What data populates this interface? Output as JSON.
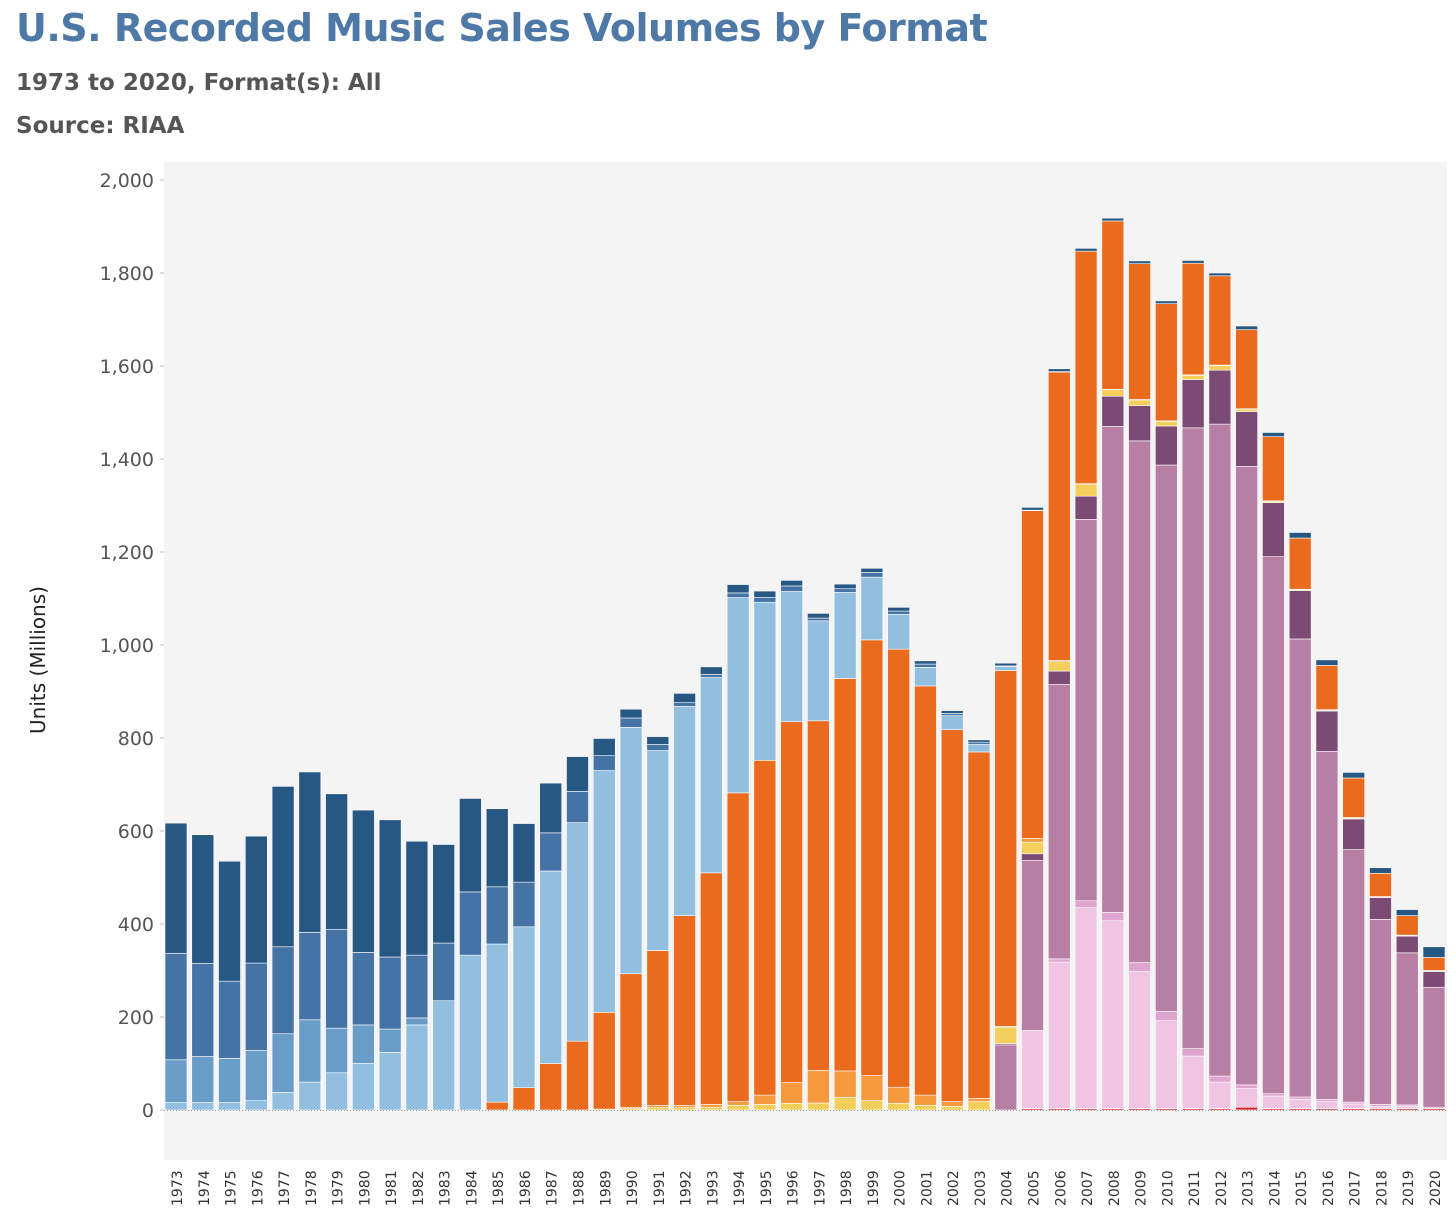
{
  "header": {
    "title": "U.S. Recorded Music Sales Volumes by Format",
    "subtitle": "1973 to 2020, Format(s): All",
    "source": "Source: RIAA"
  },
  "chart_data": {
    "type": "bar",
    "stacked": true,
    "ylabel": "Units (Millions)",
    "ylim": [
      -110,
      2020
    ],
    "yticks": [
      0,
      200,
      400,
      600,
      800,
      1000,
      1200,
      1400,
      1600,
      1800,
      2000
    ],
    "ytick_labels": [
      "0",
      "200",
      "400",
      "600",
      "800",
      "1,000",
      "1,200",
      "1,400",
      "1,600",
      "1,800",
      "2,000"
    ],
    "categories": [
      "1973",
      "1974",
      "1975",
      "1976",
      "1977",
      "1978",
      "1979",
      "1980",
      "1981",
      "1982",
      "1983",
      "1984",
      "1985",
      "1986",
      "1987",
      "1988",
      "1989",
      "1990",
      "1991",
      "1992",
      "1993",
      "1994",
      "1995",
      "1996",
      "1997",
      "1998",
      "1999",
      "2000",
      "2001",
      "2002",
      "2003",
      "2004",
      "2005",
      "2006",
      "2007",
      "2008",
      "2009",
      "2010",
      "2011",
      "2012",
      "2013",
      "2014",
      "2015",
      "2016",
      "2017",
      "2018",
      "2019",
      "2020"
    ],
    "grid": false,
    "legend": "none",
    "series": [
      {
        "color": "#d62728",
        "values": [
          0,
          0,
          0,
          0,
          0,
          0,
          0,
          0,
          0,
          0,
          0,
          0,
          0,
          0,
          0,
          0,
          0,
          0,
          0,
          0,
          0,
          0,
          0,
          0,
          0,
          0,
          0,
          0,
          0,
          0,
          0,
          0,
          3,
          3,
          3,
          3,
          3,
          3,
          3,
          3,
          6,
          3,
          3,
          3,
          3,
          3,
          3,
          3
        ]
      },
      {
        "color": "#efc5e2",
        "values": [
          0,
          0,
          0,
          0,
          0,
          0,
          0,
          0,
          0,
          0,
          0,
          0,
          0,
          0,
          0,
          0,
          0,
          0,
          0,
          0,
          0,
          0,
          0,
          0,
          0,
          0,
          0,
          0,
          0,
          0,
          0,
          0,
          168,
          315,
          432,
          404,
          295,
          189,
          113,
          57,
          40,
          27,
          20,
          15,
          10,
          5,
          5,
          0
        ]
      },
      {
        "color": "#dfa4d0",
        "values": [
          0,
          0,
          0,
          0,
          0,
          0,
          0,
          0,
          0,
          0,
          0,
          0,
          0,
          0,
          0,
          0,
          0,
          0,
          0,
          0,
          0,
          0,
          0,
          0,
          0,
          0,
          0,
          0,
          0,
          0,
          0,
          0,
          0,
          7,
          15,
          18,
          19,
          20,
          16,
          13,
          8,
          5,
          5,
          5,
          4,
          4,
          3,
          3
        ]
      },
      {
        "color": "#b87fa4",
        "values": [
          0,
          0,
          0,
          0,
          0,
          0,
          0,
          0,
          0,
          0,
          0,
          0,
          0,
          0,
          0,
          0,
          0,
          0,
          0,
          0,
          0,
          0,
          0,
          0,
          0,
          0,
          0,
          0,
          0,
          0,
          0,
          140,
          366,
          590,
          820,
          1045,
          1122,
          1175,
          1335,
          1402,
          1330,
          1155,
          985,
          748,
          543,
          398,
          327,
          258
        ]
      },
      {
        "color": "#7b4a75",
        "values": [
          0,
          0,
          0,
          0,
          0,
          0,
          0,
          0,
          0,
          0,
          0,
          0,
          0,
          0,
          0,
          0,
          0,
          0,
          0,
          0,
          0,
          0,
          0,
          0,
          0,
          0,
          0,
          0,
          0,
          0,
          0,
          3,
          14,
          29,
          50,
          65,
          76,
          84,
          104,
          116,
          118,
          116,
          104,
          87,
          66,
          47,
          36,
          34
        ]
      },
      {
        "color": "#f5cf5c",
        "values": [
          0,
          0,
          0,
          0,
          0,
          0,
          0,
          0,
          0,
          0,
          0,
          0,
          0,
          0,
          0,
          0,
          0,
          3,
          5,
          5,
          6,
          10,
          12,
          14,
          15,
          27,
          20,
          14,
          10,
          8,
          18,
          35,
          25,
          20,
          26,
          14,
          12,
          10,
          9,
          10,
          5,
          3,
          2,
          2,
          2,
          1,
          1,
          1
        ]
      },
      {
        "color": "#f59a3f",
        "values": [
          0,
          0,
          0,
          0,
          0,
          0,
          0,
          0,
          0,
          0,
          0,
          0,
          0,
          0,
          0,
          0,
          2,
          3,
          5,
          5,
          6,
          8,
          20,
          45,
          70,
          57,
          54,
          35,
          22,
          10,
          7,
          2,
          8,
          3,
          1,
          1,
          1,
          1,
          1,
          1,
          1,
          1,
          1,
          1,
          1,
          1,
          1,
          1
        ]
      },
      {
        "color": "#ea6b1e",
        "values": [
          0,
          0,
          0,
          0,
          0,
          0,
          0,
          0,
          0,
          0,
          0,
          0,
          17,
          48,
          100,
          148,
          208,
          287,
          333,
          408,
          498,
          664,
          720,
          776,
          752,
          844,
          937,
          942,
          880,
          800,
          745,
          765,
          705,
          620,
          500,
          362,
          292,
          252,
          240,
          192,
          170,
          138,
          110,
          95,
          85,
          50,
          42,
          28
        ]
      },
      {
        "color": "#92bfe0",
        "values": [
          16,
          16,
          16,
          20,
          38,
          60,
          80,
          100,
          124,
          183,
          235,
          333,
          340,
          346,
          414,
          470,
          520,
          530,
          430,
          450,
          420,
          420,
          340,
          280,
          215,
          185,
          135,
          75,
          40,
          30,
          16,
          9,
          0,
          0,
          0,
          0,
          0,
          0,
          0,
          0,
          0,
          0,
          0,
          0,
          0,
          0,
          0,
          0
        ]
      },
      {
        "color": "#6a9cc8",
        "values": [
          92,
          99,
          95,
          108,
          126,
          134,
          96,
          83,
          50,
          15,
          0,
          0,
          0,
          0,
          0,
          0,
          0,
          0,
          0,
          0,
          0,
          0,
          0,
          0,
          0,
          0,
          0,
          0,
          0,
          0,
          0,
          0,
          0,
          0,
          0,
          0,
          0,
          0,
          0,
          0,
          0,
          0,
          0,
          0,
          0,
          0,
          0,
          0
        ]
      },
      {
        "color": "#4673a5",
        "values": [
          229,
          200,
          166,
          188,
          187,
          188,
          212,
          156,
          155,
          135,
          124,
          136,
          123,
          96,
          82,
          67,
          32,
          20,
          13,
          8,
          7,
          10,
          10,
          12,
          6,
          8,
          10,
          7,
          7,
          5,
          5,
          1,
          1,
          1,
          0,
          0,
          0,
          0,
          0,
          0,
          0,
          0,
          0,
          0,
          0,
          0,
          0,
          0
        ]
      },
      {
        "color": "#275783",
        "values": [
          280,
          277,
          258,
          273,
          345,
          345,
          292,
          306,
          295,
          245,
          212,
          201,
          168,
          126,
          107,
          75,
          37,
          19,
          17,
          20,
          16,
          18,
          14,
          12,
          10,
          10,
          9,
          8,
          7,
          6,
          5,
          6,
          6,
          6,
          6,
          6,
          6,
          6,
          6,
          6,
          8,
          9,
          12,
          12,
          12,
          12,
          13,
          23
        ]
      }
    ]
  }
}
